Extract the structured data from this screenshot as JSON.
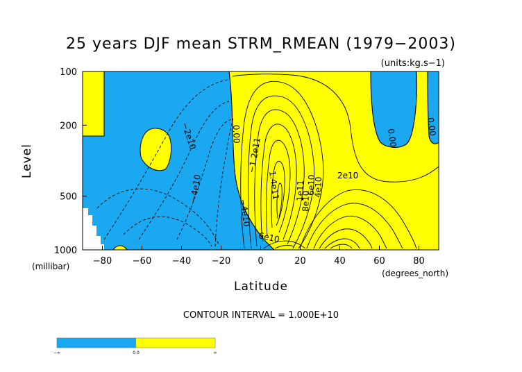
{
  "chart_data": {
    "type": "heatmap",
    "title": "25 years DJF mean STRM_RMEAN (1979−2003)",
    "units": "(units:kg.s−1)",
    "xlabel": "Latitude",
    "x_units": "(degrees_north)",
    "ylabel": "Level",
    "y_units": "(millibar)",
    "x_ticks": [
      "−80",
      "−60",
      "−40",
      "−20",
      "0",
      "20",
      "40",
      "60",
      "80"
    ],
    "y_ticks": [
      "100",
      "200",
      "500",
      "1000"
    ],
    "xlim": [
      -90,
      90
    ],
    "ylim": [
      1000,
      100
    ],
    "y_scale": "log",
    "contour_interval_text": "CONTOUR INTERVAL = 1.000E+10",
    "contour_labels": [
      {
        "text": "−2e10"
      },
      {
        "text": "−4e10"
      },
      {
        "text": "−4e10"
      },
      {
        "text": "0.00"
      },
      {
        "text": "−1.2e11"
      },
      {
        "text": "1.4e11"
      },
      {
        "text": "1e11"
      },
      {
        "text": "8e10"
      },
      {
        "text": "6e10"
      },
      {
        "text": "4e10"
      },
      {
        "text": "2e10"
      },
      {
        "text": "6e10"
      },
      {
        "text": "0.00"
      },
      {
        "text": "0.00"
      }
    ],
    "colorbar": {
      "labels": [
        "−∞",
        "0.0",
        "∞"
      ],
      "colors": [
        "#1aa8f0",
        "#ffff00"
      ]
    },
    "negative_color": "#1aa8f0",
    "positive_color": "#ffff00",
    "contour_color": "#000000"
  }
}
